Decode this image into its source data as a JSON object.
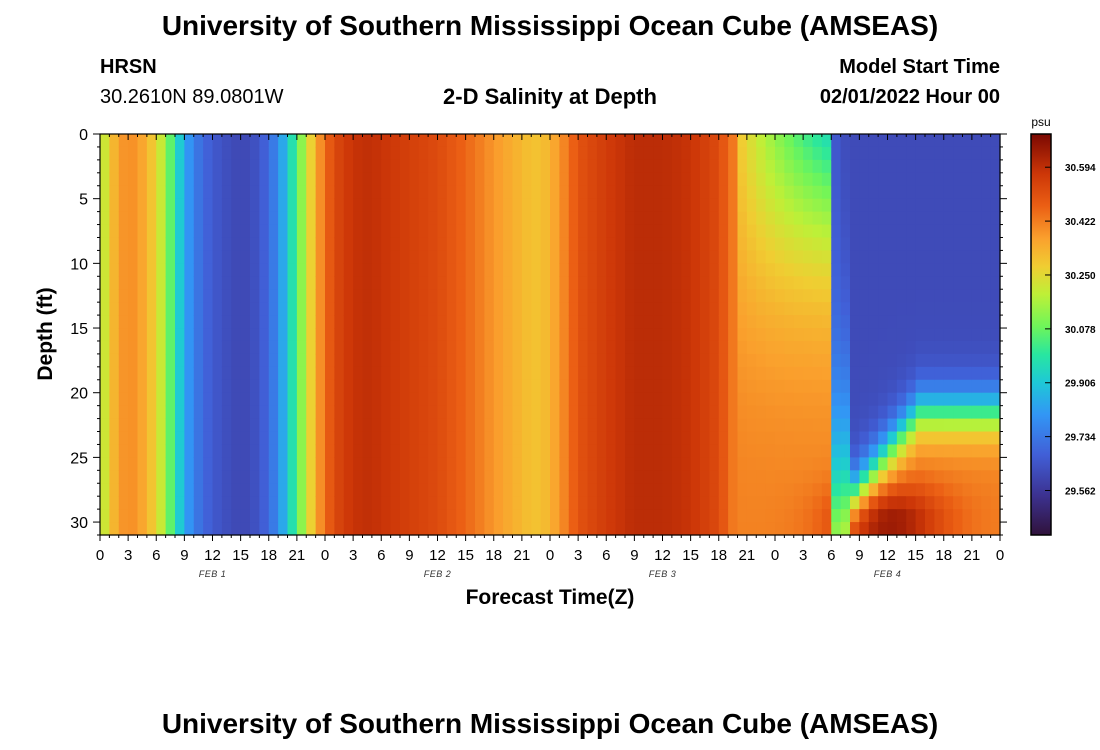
{
  "header": {
    "title": "University of Southern Mississippi Ocean Cube (AMSEAS)",
    "station": "HRSN",
    "coordinates": "30.2610N  89.0801W",
    "subtitle": "2-D Salinity at Depth",
    "model_start_label": "Model Start Time",
    "model_start_value": "02/01/2022 Hour 00"
  },
  "footer": {
    "title": "University of Southern Mississippi Ocean Cube (AMSEAS)"
  },
  "chart_data": {
    "type": "heatmap",
    "title": "2-D Salinity at Depth",
    "xlabel": "Forecast Time(Z)",
    "ylabel": "Depth (ft)",
    "x_range_hours": [
      0,
      96
    ],
    "ylim": [
      0,
      31
    ],
    "x_ticks": [
      {
        "hour": 0,
        "label": "0"
      },
      {
        "hour": 3,
        "label": "3"
      },
      {
        "hour": 6,
        "label": "6"
      },
      {
        "hour": 9,
        "label": "9"
      },
      {
        "hour": 12,
        "label": "12"
      },
      {
        "hour": 15,
        "label": "15"
      },
      {
        "hour": 18,
        "label": "18"
      },
      {
        "hour": 21,
        "label": "21"
      },
      {
        "hour": 24,
        "label": "0"
      },
      {
        "hour": 27,
        "label": "3"
      },
      {
        "hour": 30,
        "label": "6"
      },
      {
        "hour": 33,
        "label": "9"
      },
      {
        "hour": 36,
        "label": "12"
      },
      {
        "hour": 39,
        "label": "15"
      },
      {
        "hour": 42,
        "label": "18"
      },
      {
        "hour": 45,
        "label": "21"
      },
      {
        "hour": 48,
        "label": "0"
      },
      {
        "hour": 51,
        "label": "3"
      },
      {
        "hour": 54,
        "label": "6"
      },
      {
        "hour": 57,
        "label": "9"
      },
      {
        "hour": 60,
        "label": "12"
      },
      {
        "hour": 63,
        "label": "15"
      },
      {
        "hour": 66,
        "label": "18"
      },
      {
        "hour": 69,
        "label": "21"
      },
      {
        "hour": 72,
        "label": "0"
      },
      {
        "hour": 75,
        "label": "3"
      },
      {
        "hour": 78,
        "label": "6"
      },
      {
        "hour": 81,
        "label": "9"
      },
      {
        "hour": 84,
        "label": "12"
      },
      {
        "hour": 87,
        "label": "15"
      },
      {
        "hour": 90,
        "label": "18"
      },
      {
        "hour": 93,
        "label": "21"
      },
      {
        "hour": 96,
        "label": "0"
      }
    ],
    "day_labels": [
      {
        "hour": 12,
        "label": "FEB 1"
      },
      {
        "hour": 36,
        "label": "FEB 2"
      },
      {
        "hour": 60,
        "label": "FEB 3"
      },
      {
        "hour": 84,
        "label": "FEB 4"
      }
    ],
    "y_ticks": [
      0,
      5,
      10,
      15,
      20,
      25,
      30
    ],
    "colorbar": {
      "unit": "psu",
      "range": [
        29.42,
        30.7
      ],
      "tick_values": [
        29.562,
        29.734,
        29.906,
        30.078,
        30.25,
        30.422,
        30.594
      ],
      "tick_labels": [
        "29.562",
        "29.734",
        "29.906",
        "30.078",
        "30.250",
        "30.422",
        "30.594"
      ]
    },
    "surface_salinity_profile": {
      "hours": [
        0,
        1,
        2,
        3,
        4,
        5,
        6,
        7,
        8,
        9,
        10,
        11,
        12,
        13,
        14,
        15,
        16,
        17,
        18,
        19,
        20,
        21,
        22,
        23,
        24,
        25,
        26,
        27,
        28,
        29,
        30,
        33,
        36,
        39,
        42,
        45,
        46,
        47,
        48,
        49,
        50,
        51,
        54,
        57,
        60,
        63,
        66,
        67,
        68
      ],
      "psu": [
        30.15,
        30.28,
        30.37,
        30.4,
        30.38,
        30.33,
        30.26,
        30.15,
        29.98,
        29.85,
        29.75,
        29.7,
        29.66,
        29.64,
        29.62,
        29.61,
        29.62,
        29.65,
        29.7,
        29.78,
        29.9,
        30.05,
        30.2,
        30.34,
        30.45,
        30.52,
        30.56,
        30.58,
        30.59,
        30.59,
        30.58,
        30.55,
        30.52,
        30.46,
        30.38,
        30.32,
        30.3,
        30.3,
        30.33,
        30.38,
        30.44,
        30.5,
        30.56,
        30.6,
        30.6,
        30.58,
        30.52,
        30.46,
        30.4
      ]
    },
    "lower_right_regime": {
      "note": "After ~68h fresh water (about 29.6 psu) deepens from the surface to about 23 ft; saltier water (up to about 30.65 psu) remains below, with a maximum near 12Z Feb 4 at about 30 ft",
      "fresh_psu": 29.62,
      "deep_max_psu": 30.66,
      "deep_max_hour": 84,
      "deep_max_depth_ft": 30
    }
  }
}
